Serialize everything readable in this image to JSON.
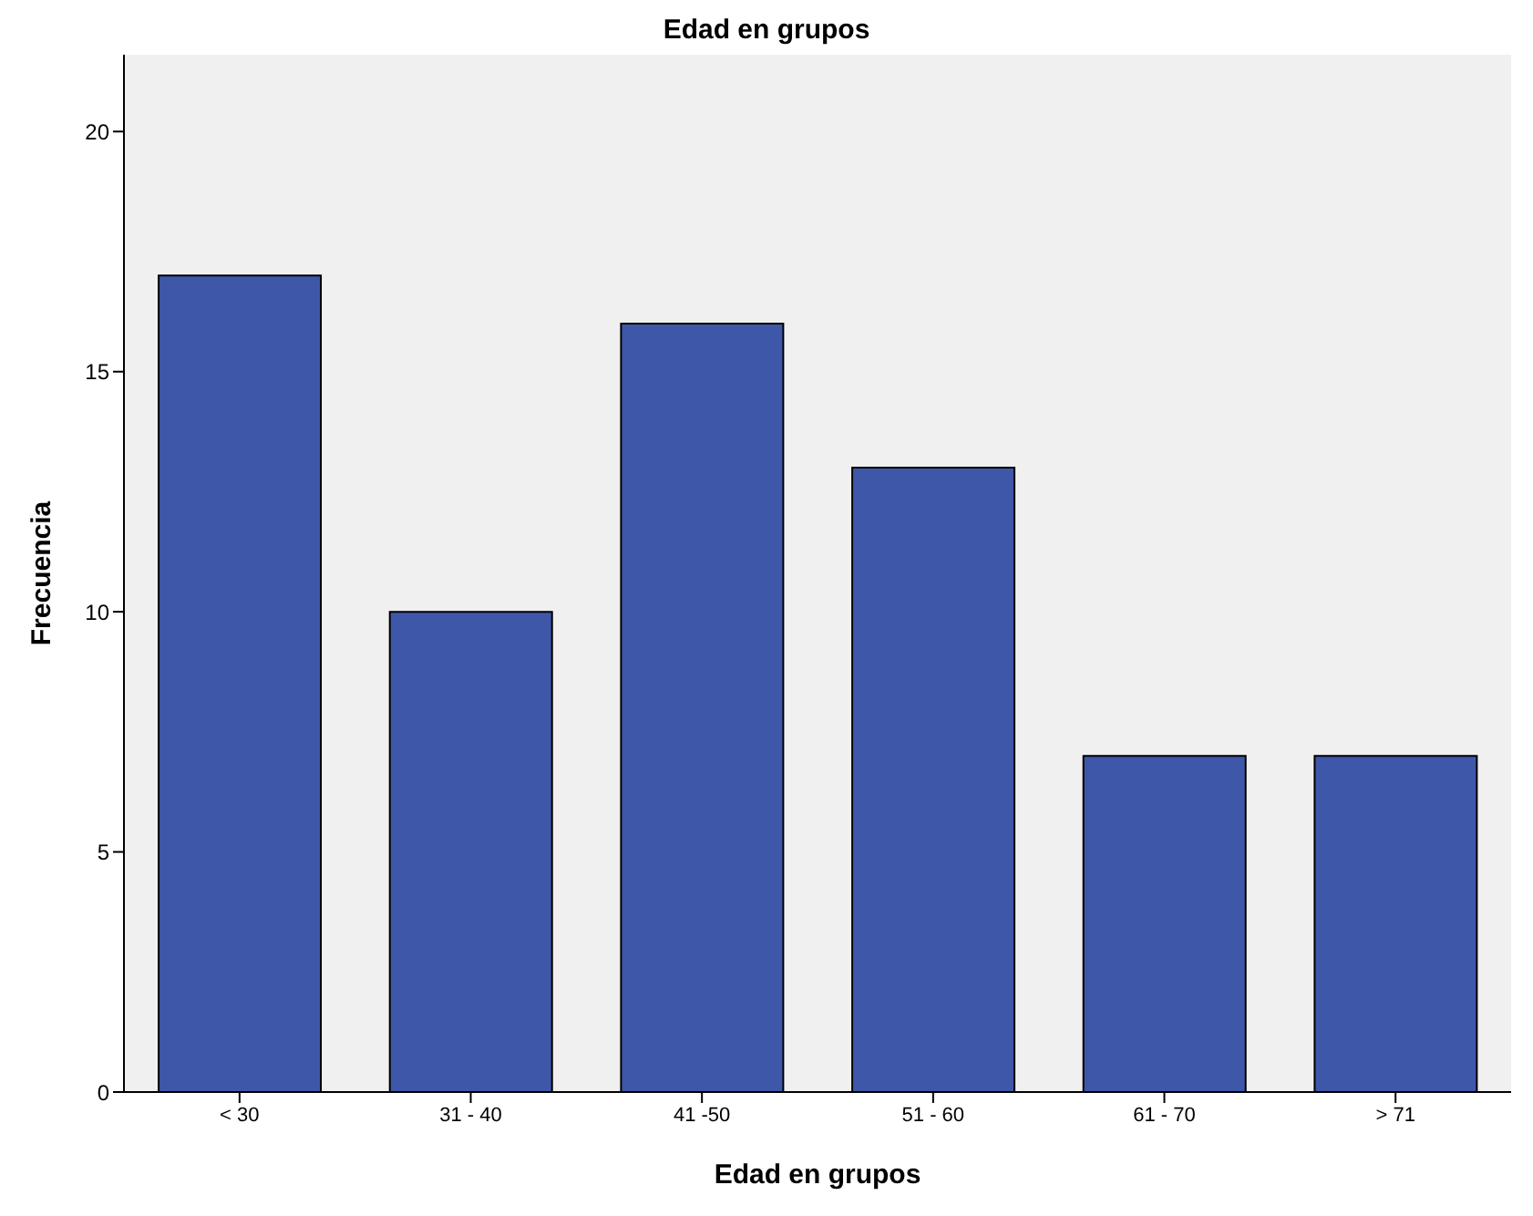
{
  "chart_data": {
    "type": "bar",
    "title": "Edad en grupos",
    "xlabel": "Edad en grupos",
    "ylabel": "Frecuencia",
    "categories": [
      "< 30",
      "31 - 40",
      "41 -50",
      "51 - 60",
      "61 - 70",
      "> 71"
    ],
    "values": [
      17,
      10,
      16,
      13,
      7,
      7
    ],
    "color": "#3f57a9",
    "ylim": [
      0,
      21.6
    ],
    "yticks": [
      0,
      5,
      10,
      15,
      20
    ],
    "grid": false
  }
}
